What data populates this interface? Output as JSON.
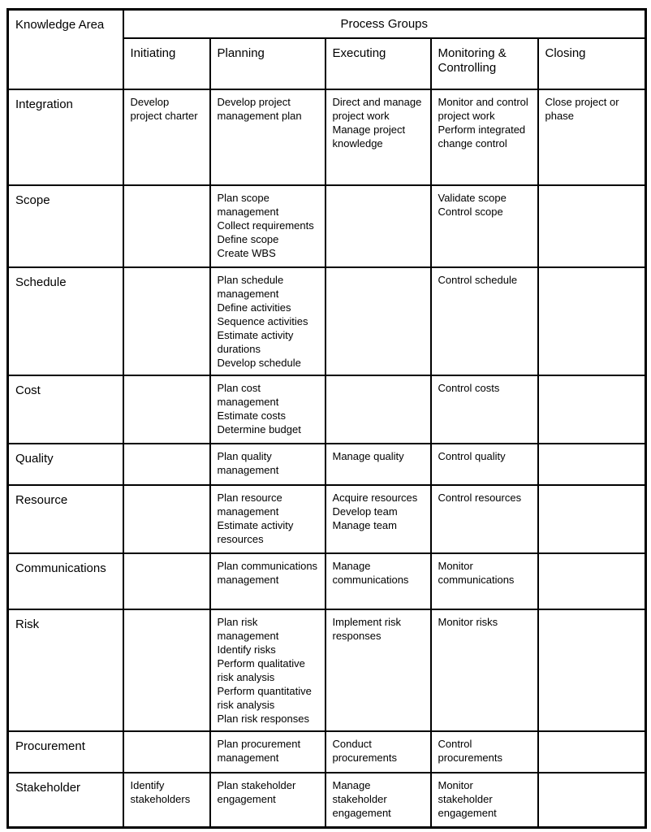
{
  "table": {
    "corner_header": "Knowledge Area",
    "group_header": "Process Groups",
    "columns": [
      "Initiating",
      "Planning",
      "Executing",
      "Monitoring & Controlling",
      "Closing"
    ],
    "rows": [
      {
        "area": "Integration",
        "cells": [
          [
            "Develop project charter"
          ],
          [
            "Develop project management plan"
          ],
          [
            "Direct and manage project work",
            "Manage project knowledge"
          ],
          [
            "Monitor and control project work",
            "Perform integrated change control"
          ],
          [
            "Close project or phase"
          ]
        ]
      },
      {
        "area": "Scope",
        "cells": [
          [],
          [
            "Plan scope management",
            "Collect requirements",
            "Define scope",
            "Create WBS"
          ],
          [],
          [
            "Validate scope",
            "Control scope"
          ],
          []
        ]
      },
      {
        "area": "Schedule",
        "cells": [
          [],
          [
            "Plan schedule management",
            "Define activities",
            "Sequence activities",
            "Estimate activity durations",
            "Develop schedule"
          ],
          [],
          [
            "Control schedule"
          ],
          []
        ]
      },
      {
        "area": "Cost",
        "cells": [
          [],
          [
            "Plan cost management",
            "Estimate costs",
            "Determine budget"
          ],
          [],
          [
            "Control costs"
          ],
          []
        ]
      },
      {
        "area": "Quality",
        "cells": [
          [],
          [
            "Plan quality management"
          ],
          [
            "Manage quality"
          ],
          [
            "Control quality"
          ],
          []
        ]
      },
      {
        "area": "Resource",
        "cells": [
          [],
          [
            "Plan resource management",
            "Estimate activity resources"
          ],
          [
            "Acquire resources",
            "Develop team",
            "Manage team"
          ],
          [
            "Control resources"
          ],
          []
        ]
      },
      {
        "area": "Communications",
        "cells": [
          [],
          [
            "Plan communications management"
          ],
          [
            "Manage communications"
          ],
          [
            "Monitor communications"
          ],
          []
        ]
      },
      {
        "area": "Risk",
        "cells": [
          [],
          [
            "Plan risk management",
            "Identify risks",
            "Perform qualitative risk analysis",
            "Perform quantitative risk analysis",
            "Plan risk responses"
          ],
          [
            "Implement risk responses"
          ],
          [
            "Monitor risks"
          ],
          []
        ]
      },
      {
        "area": "Procurement",
        "cells": [
          [],
          [
            "Plan procurement management"
          ],
          [
            "Conduct procurements"
          ],
          [
            "Control procurements"
          ],
          []
        ]
      },
      {
        "area": "Stakeholder",
        "cells": [
          [
            "Identify stakeholders"
          ],
          [
            "Plan stakeholder engagement"
          ],
          [
            "Manage stakeholder engagement"
          ],
          [
            "Monitor stakeholder engagement"
          ],
          []
        ]
      }
    ]
  }
}
